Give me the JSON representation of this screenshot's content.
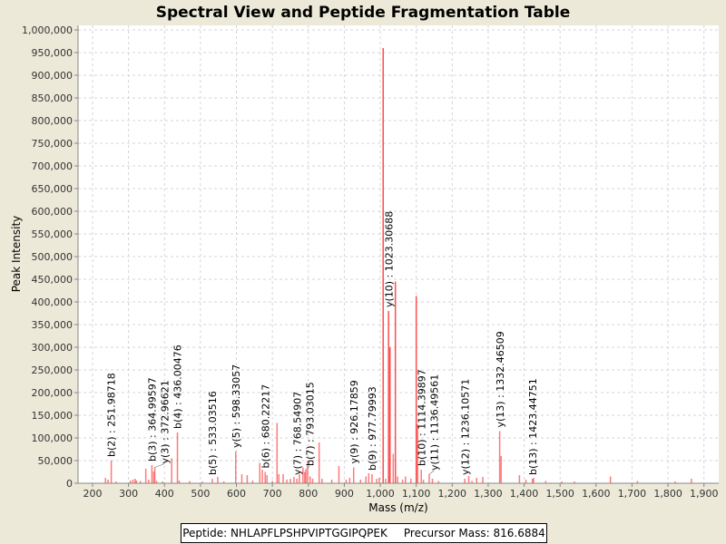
{
  "chart_data": {
    "type": "bar",
    "title": "Spectral View and Peptide Fragmentation Table",
    "xlabel": "Mass (m/z)",
    "ylabel": "Peak Intensity",
    "xlim": [
      160,
      1942
    ],
    "ylim": [
      0,
      1010000
    ],
    "xticks": [
      200,
      300,
      400,
      500,
      600,
      700,
      800,
      900,
      1000,
      1100,
      1200,
      1300,
      1400,
      1500,
      1600,
      1700,
      1800,
      1900
    ],
    "yticks": [
      0,
      50000,
      100000,
      150000,
      200000,
      250000,
      300000,
      350000,
      400000,
      450000,
      500000,
      550000,
      600000,
      650000,
      700000,
      750000,
      800000,
      850000,
      900000,
      950000,
      1000000
    ],
    "grid": true,
    "color": "#ff4d4d",
    "peaks": [
      [
        236,
        12000
      ],
      [
        243,
        8000
      ],
      [
        252,
        50000
      ],
      [
        265,
        4000
      ],
      [
        305,
        6000
      ],
      [
        312,
        8000
      ],
      [
        318,
        10000
      ],
      [
        322,
        6000
      ],
      [
        333,
        5000
      ],
      [
        348,
        32000
      ],
      [
        356,
        8000
      ],
      [
        365,
        40000
      ],
      [
        370,
        26000
      ],
      [
        373,
        35000
      ],
      [
        378,
        5000
      ],
      [
        395,
        4000
      ],
      [
        420,
        55000
      ],
      [
        436,
        112000
      ],
      [
        441,
        6000
      ],
      [
        470,
        5000
      ],
      [
        505,
        4000
      ],
      [
        533,
        10000
      ],
      [
        548,
        14000
      ],
      [
        565,
        4000
      ],
      [
        598,
        70000
      ],
      [
        615,
        20000
      ],
      [
        630,
        18000
      ],
      [
        645,
        6000
      ],
      [
        665,
        45000
      ],
      [
        672,
        30000
      ],
      [
        680,
        25000
      ],
      [
        685,
        18000
      ],
      [
        700,
        5000
      ],
      [
        713,
        133000
      ],
      [
        718,
        20000
      ],
      [
        730,
        20000
      ],
      [
        740,
        8000
      ],
      [
        750,
        10000
      ],
      [
        760,
        14000
      ],
      [
        768,
        10000
      ],
      [
        775,
        20000
      ],
      [
        785,
        35000
      ],
      [
        790,
        25000
      ],
      [
        793,
        30000
      ],
      [
        798,
        50000
      ],
      [
        805,
        15000
      ],
      [
        812,
        10000
      ],
      [
        830,
        90000
      ],
      [
        838,
        10000
      ],
      [
        865,
        8000
      ],
      [
        885,
        38000
      ],
      [
        905,
        8000
      ],
      [
        915,
        12000
      ],
      [
        926,
        35000
      ],
      [
        945,
        8000
      ],
      [
        960,
        15000
      ],
      [
        968,
        22000
      ],
      [
        977,
        20000
      ],
      [
        990,
        10000
      ],
      [
        997,
        12000
      ],
      [
        1008,
        960000
      ],
      [
        1015,
        10000
      ],
      [
        1023,
        380000
      ],
      [
        1027,
        300000
      ],
      [
        1036,
        65000
      ],
      [
        1042,
        445000
      ],
      [
        1048,
        15000
      ],
      [
        1062,
        8000
      ],
      [
        1070,
        15000
      ],
      [
        1085,
        10000
      ],
      [
        1100,
        413000
      ],
      [
        1104,
        130000
      ],
      [
        1114,
        30000
      ],
      [
        1120,
        8000
      ],
      [
        1136,
        20000
      ],
      [
        1145,
        10000
      ],
      [
        1162,
        5000
      ],
      [
        1235,
        10000
      ],
      [
        1246,
        16000
      ],
      [
        1255,
        5000
      ],
      [
        1268,
        12000
      ],
      [
        1285,
        14000
      ],
      [
        1332,
        115000
      ],
      [
        1336,
        60000
      ],
      [
        1387,
        18000
      ],
      [
        1405,
        8000
      ],
      [
        1423,
        10000
      ],
      [
        1426,
        12000
      ],
      [
        1460,
        5000
      ],
      [
        1505,
        4000
      ],
      [
        1540,
        4000
      ],
      [
        1640,
        15000
      ],
      [
        1715,
        5000
      ],
      [
        1820,
        4000
      ],
      [
        1865,
        10000
      ]
    ],
    "annotations": [
      {
        "mass": 251.98718,
        "intensity": 50000,
        "label": "b(2) : 251.98718"
      },
      {
        "mass": 364.99597,
        "intensity": 40000,
        "label": "b(3) : 364.99597"
      },
      {
        "mass": 372.96621,
        "intensity": 35000,
        "label": "y(3) : 372.96621"
      },
      {
        "mass": 436.00476,
        "intensity": 112000,
        "label": "b(4) : 436.00476"
      },
      {
        "mass": 533.03516,
        "intensity": 10000,
        "label": "b(5) : 533.03516"
      },
      {
        "mass": 598.33057,
        "intensity": 70000,
        "label": "y(5) : 598.33057"
      },
      {
        "mass": 680.22217,
        "intensity": 25000,
        "label": "b(6) : 680.22217"
      },
      {
        "mass": 768.54907,
        "intensity": 10000,
        "label": "y(7) : 768.54907"
      },
      {
        "mass": 793.03015,
        "intensity": 30000,
        "label": "b(7) : 793.03015"
      },
      {
        "mass": 926.17859,
        "intensity": 35000,
        "label": "y(9) : 926.17859"
      },
      {
        "mass": 977.79993,
        "intensity": 20000,
        "label": "b(9) : 977.79993"
      },
      {
        "mass": 1023.30688,
        "intensity": 380000,
        "label": "y(10) : 1023.30688"
      },
      {
        "mass": 1114.39897,
        "intensity": 30000,
        "label": "b(10) : 1114.39897"
      },
      {
        "mass": 1136.49561,
        "intensity": 20000,
        "label": "y(11) : 1136.49561"
      },
      {
        "mass": 1236.10571,
        "intensity": 10000,
        "label": "y(12) : 1236.10571"
      },
      {
        "mass": 1332.46509,
        "intensity": 115000,
        "label": "y(13) : 1332.46509"
      },
      {
        "mass": 1423.44751,
        "intensity": 10000,
        "label": "b(13) : 1423.44751"
      }
    ]
  },
  "footer": {
    "peptide": "Peptide: NHLAPFLPSHPVIPTGGIPQPEK",
    "precursor": "Precursor Mass: 816.6884"
  }
}
